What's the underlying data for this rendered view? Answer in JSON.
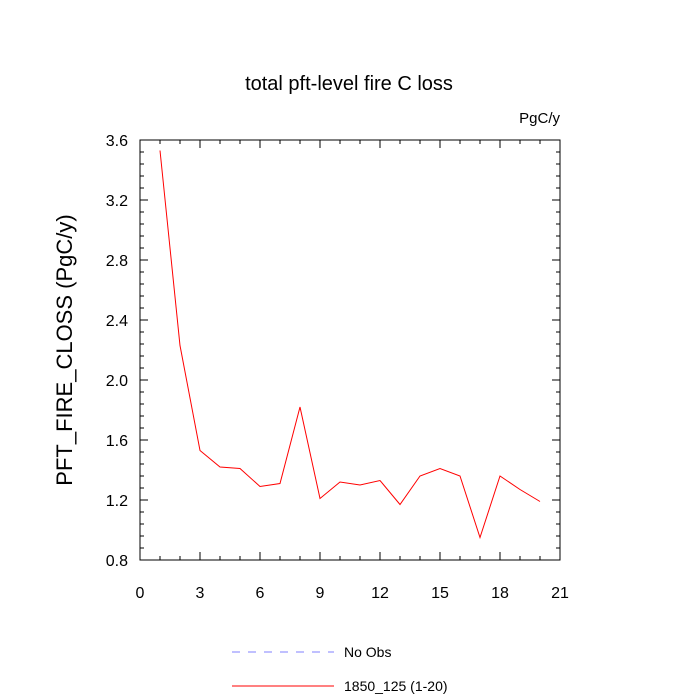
{
  "chart_data": {
    "type": "line",
    "title": "total pft-level fire C loss",
    "units_label": "PgC/y",
    "xlabel": "",
    "ylabel": "PFT_FIRE_CLOSS  (PgC/y)",
    "xlim": [
      0,
      21
    ],
    "ylim": [
      0.8,
      3.6
    ],
    "xticks": [
      0,
      3,
      6,
      9,
      12,
      15,
      18,
      21
    ],
    "xtick_labels": [
      "0",
      "3",
      "6",
      "9",
      "12",
      "15",
      "18",
      "21"
    ],
    "yticks": [
      0.8,
      1.2,
      1.6,
      2.0,
      2.4,
      2.8,
      3.2,
      3.6
    ],
    "ytick_labels": [
      "0.8",
      "1.2",
      "1.6",
      "2.0",
      "2.4",
      "2.8",
      "3.2",
      "3.6"
    ],
    "grid": false,
    "legend_position": "bottom",
    "series": [
      {
        "name": "No Obs",
        "color": "#8080ff",
        "dashed": true,
        "x": [],
        "values": []
      },
      {
        "name": "1850_125 (1-20)",
        "color": "#ff0000",
        "dashed": false,
        "x": [
          1,
          2,
          3,
          4,
          5,
          6,
          7,
          8,
          9,
          10,
          11,
          12,
          13,
          14,
          15,
          16,
          17,
          18,
          19,
          20
        ],
        "values": [
          3.53,
          2.23,
          1.53,
          1.42,
          1.41,
          1.29,
          1.31,
          1.82,
          1.21,
          1.32,
          1.3,
          1.33,
          1.17,
          1.36,
          1.41,
          1.36,
          0.95,
          1.36,
          1.27,
          1.19
        ]
      }
    ]
  }
}
